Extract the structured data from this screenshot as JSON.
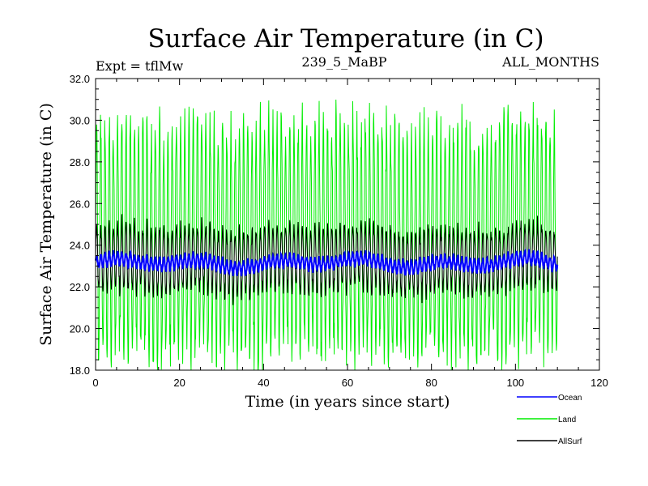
{
  "chart_data": {
    "type": "line",
    "title": "Surface Air Temperature (in C)",
    "subtitle_left": "Expt = tflMw",
    "subtitle_center": "239_5_MaBP",
    "subtitle_right": "ALL_MONTHS",
    "xlabel": "Time (in years since start)",
    "ylabel": "Surface Air Temperature (in C)",
    "xlim": [
      0,
      120
    ],
    "ylim": [
      18,
      32
    ],
    "xticks": [
      0,
      20,
      40,
      60,
      80,
      100,
      120
    ],
    "xtick_labels": [
      "0",
      "20",
      "40",
      "60",
      "80",
      "100",
      "120"
    ],
    "yticks": [
      18,
      20,
      22,
      24,
      26,
      28,
      30,
      32
    ],
    "ytick_labels": [
      "18.0",
      "20.0",
      "22.0",
      "24.0",
      "26.0",
      "28.0",
      "30.0",
      "32.0"
    ],
    "x_end": 110,
    "samples_per_year": 12,
    "series": [
      {
        "name": "Land",
        "color": "#00ee00",
        "mean": 24.2,
        "amplitude": 5.4,
        "noise": 0.9
      },
      {
        "name": "AllSurf",
        "color": "#000000",
        "mean": 23.3,
        "amplitude": 1.5,
        "noise": 0.3
      },
      {
        "name": "Ocean",
        "color": "#0000ff",
        "mean": 23.15,
        "amplitude": 0.3,
        "noise": 0.12
      }
    ],
    "legend": [
      {
        "name": "Ocean",
        "color": "#0000ff"
      },
      {
        "name": "Land",
        "color": "#00ee00"
      },
      {
        "name": "AllSurf",
        "color": "#000000"
      }
    ]
  }
}
